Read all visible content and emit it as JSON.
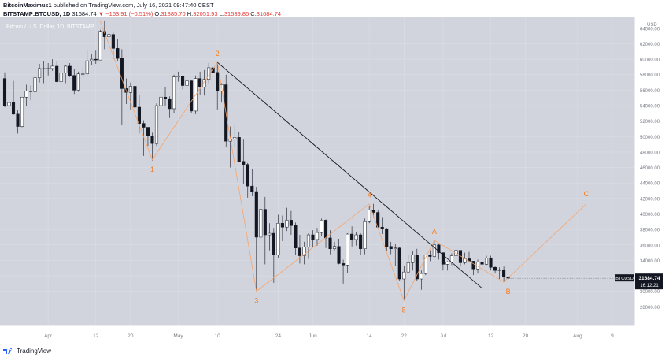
{
  "header": {
    "author": "BitcoinMaximus1",
    "published": "published on TradingView.com, July 16, 2021 09:47:40 CEST",
    "symbol": "BITSTAMP:BTCUSD, 1D",
    "last": "31684.74",
    "change": "▼ −163.91 (−0.51%)",
    "o_label": "O:",
    "o_value": "31885.70",
    "h_label": "H:",
    "h_value": "32051.93",
    "l_label": "L:",
    "l_value": "31539.86",
    "c_label": "C:",
    "c_value": "31684.74"
  },
  "footer": {
    "brand": "TradingView"
  },
  "colors": {
    "background": "#d1d4dc",
    "up_candle": "#ffffff",
    "down_candle": "#131722",
    "wave_line": "#f7a46b",
    "wave_label": "#f57c1f",
    "trendline": "#131722",
    "price_tag": "#131722"
  },
  "chart_data": {
    "type": "candlestick",
    "title": "Bitcoin / U.S. Dollar, 1D, BITSTAMP",
    "ylabel": "USD",
    "y_scale": "linear",
    "ylim": [
      26000,
      65000
    ],
    "y_ticks": [
      28000,
      30000,
      32000,
      34000,
      36000,
      38000,
      40000,
      42000,
      44000,
      46000,
      48000,
      50000,
      52000,
      54000,
      56000,
      58000,
      60000,
      62000,
      64000
    ],
    "x_range": [
      "2021-03-22",
      "2021-08-13"
    ],
    "x_ticks": [
      {
        "date": "2021-04-01",
        "label": "Apr"
      },
      {
        "date": "2021-04-12",
        "label": "12"
      },
      {
        "date": "2021-04-20",
        "label": "20"
      },
      {
        "date": "2021-05-01",
        "label": "May"
      },
      {
        "date": "2021-05-10",
        "label": "10"
      },
      {
        "date": "2021-05-24",
        "label": "24"
      },
      {
        "date": "2021-06-01",
        "label": "Jun"
      },
      {
        "date": "2021-06-14",
        "label": "14"
      },
      {
        "date": "2021-06-22",
        "label": "22"
      },
      {
        "date": "2021-07-01",
        "label": "Jul"
      },
      {
        "date": "2021-07-12",
        "label": "12"
      },
      {
        "date": "2021-07-20",
        "label": "20"
      },
      {
        "date": "2021-08-01",
        "label": "Aug"
      },
      {
        "date": "2021-08-09",
        "label": "9"
      }
    ],
    "grid": true,
    "current_price": {
      "value": 31684.74,
      "label": "31684.74",
      "symbol": "BTCUSD",
      "countdown": "16:12:21"
    },
    "candles": [
      {
        "date": "2021-03-22",
        "o": 57500,
        "h": 58300,
        "l": 53800,
        "c": 54000
      },
      {
        "date": "2021-03-23",
        "o": 54000,
        "h": 55800,
        "l": 53000,
        "c": 54400
      },
      {
        "date": "2021-03-24",
        "o": 54400,
        "h": 57200,
        "l": 52800,
        "c": 52900
      },
      {
        "date": "2021-03-25",
        "o": 52900,
        "h": 53400,
        "l": 50400,
        "c": 51300
      },
      {
        "date": "2021-03-26",
        "o": 51300,
        "h": 55100,
        "l": 51200,
        "c": 55100
      },
      {
        "date": "2021-03-27",
        "o": 55100,
        "h": 56700,
        "l": 53900,
        "c": 55900
      },
      {
        "date": "2021-03-28",
        "o": 55900,
        "h": 56600,
        "l": 54700,
        "c": 55800
      },
      {
        "date": "2021-03-29",
        "o": 55800,
        "h": 58400,
        "l": 54800,
        "c": 57600
      },
      {
        "date": "2021-03-30",
        "o": 57600,
        "h": 59400,
        "l": 57000,
        "c": 58800
      },
      {
        "date": "2021-03-31",
        "o": 58800,
        "h": 59800,
        "l": 56900,
        "c": 58800
      },
      {
        "date": "2021-04-01",
        "o": 58800,
        "h": 59500,
        "l": 57900,
        "c": 58800
      },
      {
        "date": "2021-04-02",
        "o": 58800,
        "h": 60000,
        "l": 58500,
        "c": 59100
      },
      {
        "date": "2021-04-03",
        "o": 59100,
        "h": 59800,
        "l": 57000,
        "c": 57100
      },
      {
        "date": "2021-04-04",
        "o": 57100,
        "h": 58500,
        "l": 56500,
        "c": 58200
      },
      {
        "date": "2021-04-05",
        "o": 58200,
        "h": 59300,
        "l": 56900,
        "c": 59100
      },
      {
        "date": "2021-04-06",
        "o": 59100,
        "h": 59500,
        "l": 57700,
        "c": 57900
      },
      {
        "date": "2021-04-07",
        "o": 57900,
        "h": 58700,
        "l": 55500,
        "c": 56000
      },
      {
        "date": "2021-04-08",
        "o": 56000,
        "h": 58400,
        "l": 55800,
        "c": 58100
      },
      {
        "date": "2021-04-09",
        "o": 58100,
        "h": 58900,
        "l": 57700,
        "c": 58100
      },
      {
        "date": "2021-04-10",
        "o": 58100,
        "h": 61200,
        "l": 57900,
        "c": 59800
      },
      {
        "date": "2021-04-11",
        "o": 59800,
        "h": 60700,
        "l": 59200,
        "c": 60000
      },
      {
        "date": "2021-04-12",
        "o": 60000,
        "h": 61100,
        "l": 59400,
        "c": 59900
      },
      {
        "date": "2021-04-13",
        "o": 59900,
        "h": 63800,
        "l": 59900,
        "c": 63600
      },
      {
        "date": "2021-04-14",
        "o": 63600,
        "h": 64900,
        "l": 61300,
        "c": 62900
      },
      {
        "date": "2021-04-15",
        "o": 62900,
        "h": 63800,
        "l": 62100,
        "c": 63200
      },
      {
        "date": "2021-04-16",
        "o": 63200,
        "h": 63600,
        "l": 60000,
        "c": 61400
      },
      {
        "date": "2021-04-17",
        "o": 61400,
        "h": 62600,
        "l": 59700,
        "c": 60100
      },
      {
        "date": "2021-04-18",
        "o": 60100,
        "h": 61300,
        "l": 51500,
        "c": 56200
      },
      {
        "date": "2021-04-19",
        "o": 56200,
        "h": 57500,
        "l": 54200,
        "c": 55700
      },
      {
        "date": "2021-04-20",
        "o": 55700,
        "h": 57000,
        "l": 53400,
        "c": 56500
      },
      {
        "date": "2021-04-21",
        "o": 56500,
        "h": 56800,
        "l": 53600,
        "c": 53800
      },
      {
        "date": "2021-04-22",
        "o": 53800,
        "h": 55400,
        "l": 50400,
        "c": 51700
      },
      {
        "date": "2021-04-23",
        "o": 51700,
        "h": 52100,
        "l": 47500,
        "c": 51200
      },
      {
        "date": "2021-04-24",
        "o": 51200,
        "h": 51200,
        "l": 48800,
        "c": 50100
      },
      {
        "date": "2021-04-25",
        "o": 50100,
        "h": 50500,
        "l": 46900,
        "c": 49100
      },
      {
        "date": "2021-04-26",
        "o": 49100,
        "h": 54300,
        "l": 48800,
        "c": 54000
      },
      {
        "date": "2021-04-27",
        "o": 54000,
        "h": 55400,
        "l": 53300,
        "c": 55100
      },
      {
        "date": "2021-04-28",
        "o": 55100,
        "h": 56400,
        "l": 53900,
        "c": 54900
      },
      {
        "date": "2021-04-29",
        "o": 54900,
        "h": 55200,
        "l": 52400,
        "c": 53600
      },
      {
        "date": "2021-04-30",
        "o": 53600,
        "h": 58000,
        "l": 53000,
        "c": 57700
      },
      {
        "date": "2021-05-01",
        "o": 57700,
        "h": 58400,
        "l": 57100,
        "c": 57800
      },
      {
        "date": "2021-05-02",
        "o": 57800,
        "h": 57900,
        "l": 56100,
        "c": 56600
      },
      {
        "date": "2021-05-03",
        "o": 56600,
        "h": 58900,
        "l": 56500,
        "c": 57200
      },
      {
        "date": "2021-05-04",
        "o": 57200,
        "h": 57300,
        "l": 53000,
        "c": 53300
      },
      {
        "date": "2021-05-05",
        "o": 53300,
        "h": 57900,
        "l": 52900,
        "c": 57500
      },
      {
        "date": "2021-05-06",
        "o": 57500,
        "h": 58400,
        "l": 55400,
        "c": 56400
      },
      {
        "date": "2021-05-07",
        "o": 56400,
        "h": 58600,
        "l": 55300,
        "c": 57400
      },
      {
        "date": "2021-05-08",
        "o": 57400,
        "h": 59500,
        "l": 56900,
        "c": 58900
      },
      {
        "date": "2021-05-09",
        "o": 58900,
        "h": 59200,
        "l": 56200,
        "c": 58300
      },
      {
        "date": "2021-05-10",
        "o": 58300,
        "h": 59600,
        "l": 53500,
        "c": 55900
      },
      {
        "date": "2021-05-11",
        "o": 55900,
        "h": 56900,
        "l": 54400,
        "c": 56700
      },
      {
        "date": "2021-05-12",
        "o": 56700,
        "h": 58000,
        "l": 48600,
        "c": 49400
      },
      {
        "date": "2021-05-13",
        "o": 49400,
        "h": 51300,
        "l": 46000,
        "c": 49700
      },
      {
        "date": "2021-05-14",
        "o": 49700,
        "h": 51500,
        "l": 48700,
        "c": 49900
      },
      {
        "date": "2021-05-15",
        "o": 49900,
        "h": 50600,
        "l": 46700,
        "c": 46800
      },
      {
        "date": "2021-05-16",
        "o": 46800,
        "h": 49600,
        "l": 43900,
        "c": 46400
      },
      {
        "date": "2021-05-17",
        "o": 46400,
        "h": 46600,
        "l": 42100,
        "c": 43600
      },
      {
        "date": "2021-05-18",
        "o": 43600,
        "h": 45800,
        "l": 42300,
        "c": 42900
      },
      {
        "date": "2021-05-19",
        "o": 42900,
        "h": 43500,
        "l": 30000,
        "c": 37000
      },
      {
        "date": "2021-05-20",
        "o": 37000,
        "h": 42500,
        "l": 35000,
        "c": 40600
      },
      {
        "date": "2021-05-21",
        "o": 40600,
        "h": 42200,
        "l": 33500,
        "c": 37300
      },
      {
        "date": "2021-05-22",
        "o": 37300,
        "h": 38800,
        "l": 35300,
        "c": 37500
      },
      {
        "date": "2021-05-23",
        "o": 37500,
        "h": 38200,
        "l": 31100,
        "c": 34700
      },
      {
        "date": "2021-05-24",
        "o": 34700,
        "h": 39900,
        "l": 34300,
        "c": 38800
      },
      {
        "date": "2021-05-25",
        "o": 38800,
        "h": 39800,
        "l": 36500,
        "c": 38300
      },
      {
        "date": "2021-05-26",
        "o": 38300,
        "h": 40800,
        "l": 37800,
        "c": 39200
      },
      {
        "date": "2021-05-27",
        "o": 39200,
        "h": 40400,
        "l": 37300,
        "c": 38500
      },
      {
        "date": "2021-05-28",
        "o": 38500,
        "h": 38900,
        "l": 34700,
        "c": 35600
      },
      {
        "date": "2021-05-29",
        "o": 35600,
        "h": 37300,
        "l": 33600,
        "c": 34600
      },
      {
        "date": "2021-05-30",
        "o": 34600,
        "h": 36400,
        "l": 33500,
        "c": 35700
      },
      {
        "date": "2021-05-31",
        "o": 35700,
        "h": 37500,
        "l": 34200,
        "c": 37300
      },
      {
        "date": "2021-06-01",
        "o": 37300,
        "h": 37900,
        "l": 35700,
        "c": 36700
      },
      {
        "date": "2021-06-02",
        "o": 36700,
        "h": 38200,
        "l": 35900,
        "c": 37600
      },
      {
        "date": "2021-06-03",
        "o": 37600,
        "h": 39400,
        "l": 37200,
        "c": 39200
      },
      {
        "date": "2021-06-04",
        "o": 39200,
        "h": 39300,
        "l": 35600,
        "c": 36900
      },
      {
        "date": "2021-06-05",
        "o": 36900,
        "h": 37900,
        "l": 34800,
        "c": 35500
      },
      {
        "date": "2021-06-06",
        "o": 35500,
        "h": 36400,
        "l": 35300,
        "c": 35800
      },
      {
        "date": "2021-06-07",
        "o": 35800,
        "h": 36800,
        "l": 33500,
        "c": 33600
      },
      {
        "date": "2021-06-08",
        "o": 33600,
        "h": 34100,
        "l": 31000,
        "c": 33400
      },
      {
        "date": "2021-06-09",
        "o": 33400,
        "h": 37500,
        "l": 32400,
        "c": 37400
      },
      {
        "date": "2021-06-10",
        "o": 37400,
        "h": 38400,
        "l": 35800,
        "c": 36700
      },
      {
        "date": "2021-06-11",
        "o": 36700,
        "h": 37700,
        "l": 35900,
        "c": 37300
      },
      {
        "date": "2021-06-12",
        "o": 37300,
        "h": 37500,
        "l": 34700,
        "c": 35500
      },
      {
        "date": "2021-06-13",
        "o": 35500,
        "h": 39400,
        "l": 34800,
        "c": 39000
      },
      {
        "date": "2021-06-14",
        "o": 39000,
        "h": 41000,
        "l": 38800,
        "c": 40500
      },
      {
        "date": "2021-06-15",
        "o": 40500,
        "h": 41300,
        "l": 39600,
        "c": 40200
      },
      {
        "date": "2021-06-16",
        "o": 40200,
        "h": 40500,
        "l": 38200,
        "c": 38300
      },
      {
        "date": "2021-06-17",
        "o": 38300,
        "h": 39600,
        "l": 37400,
        "c": 38100
      },
      {
        "date": "2021-06-18",
        "o": 38100,
        "h": 38200,
        "l": 35200,
        "c": 35800
      },
      {
        "date": "2021-06-19",
        "o": 35800,
        "h": 36400,
        "l": 34800,
        "c": 35500
      },
      {
        "date": "2021-06-20",
        "o": 35500,
        "h": 36100,
        "l": 33300,
        "c": 35600
      },
      {
        "date": "2021-06-21",
        "o": 35600,
        "h": 35700,
        "l": 31300,
        "c": 31600
      },
      {
        "date": "2021-06-22",
        "o": 31600,
        "h": 33300,
        "l": 28800,
        "c": 32500
      },
      {
        "date": "2021-06-23",
        "o": 32500,
        "h": 34800,
        "l": 32300,
        "c": 33700
      },
      {
        "date": "2021-06-24",
        "o": 33700,
        "h": 35200,
        "l": 32700,
        "c": 34700
      },
      {
        "date": "2021-06-25",
        "o": 34700,
        "h": 35500,
        "l": 31300,
        "c": 31600
      },
      {
        "date": "2021-06-26",
        "o": 31600,
        "h": 32700,
        "l": 30200,
        "c": 32300
      },
      {
        "date": "2021-06-27",
        "o": 32300,
        "h": 34700,
        "l": 32100,
        "c": 34700
      },
      {
        "date": "2021-06-28",
        "o": 34700,
        "h": 35300,
        "l": 33900,
        "c": 34500
      },
      {
        "date": "2021-06-29",
        "o": 34500,
        "h": 36600,
        "l": 34300,
        "c": 36000
      },
      {
        "date": "2021-06-30",
        "o": 36000,
        "h": 36100,
        "l": 34100,
        "c": 35000
      },
      {
        "date": "2021-07-01",
        "o": 35000,
        "h": 35000,
        "l": 32700,
        "c": 33500
      },
      {
        "date": "2021-07-02",
        "o": 33500,
        "h": 33900,
        "l": 32700,
        "c": 33800
      },
      {
        "date": "2021-07-03",
        "o": 33800,
        "h": 34900,
        "l": 33400,
        "c": 34600
      },
      {
        "date": "2021-07-04",
        "o": 34600,
        "h": 35900,
        "l": 34300,
        "c": 35300
      },
      {
        "date": "2021-07-05",
        "o": 35300,
        "h": 35300,
        "l": 33200,
        "c": 33700
      },
      {
        "date": "2021-07-06",
        "o": 33700,
        "h": 35000,
        "l": 33500,
        "c": 34200
      },
      {
        "date": "2021-07-07",
        "o": 34200,
        "h": 35100,
        "l": 33800,
        "c": 33900
      },
      {
        "date": "2021-07-08",
        "o": 33900,
        "h": 33900,
        "l": 32100,
        "c": 32900
      },
      {
        "date": "2021-07-09",
        "o": 32900,
        "h": 34100,
        "l": 32300,
        "c": 33800
      },
      {
        "date": "2021-07-10",
        "o": 33800,
        "h": 34300,
        "l": 33100,
        "c": 33500
      },
      {
        "date": "2021-07-11",
        "o": 33500,
        "h": 34600,
        "l": 33400,
        "c": 34300
      },
      {
        "date": "2021-07-12",
        "o": 34300,
        "h": 34600,
        "l": 32700,
        "c": 33100
      },
      {
        "date": "2021-07-13",
        "o": 33100,
        "h": 33300,
        "l": 32300,
        "c": 32700
      },
      {
        "date": "2021-07-14",
        "o": 32700,
        "h": 33100,
        "l": 31600,
        "c": 32800
      },
      {
        "date": "2021-07-15",
        "o": 32800,
        "h": 33200,
        "l": 31200,
        "c": 31900
      },
      {
        "date": "2021-07-16",
        "o": 31886,
        "h": 32052,
        "l": 31540,
        "c": 31685
      }
    ],
    "wave_labels": [
      {
        "label": "1",
        "date": "2021-04-25",
        "value": 47000,
        "pos": "below"
      },
      {
        "label": "2",
        "date": "2021-05-10",
        "value": 59600,
        "pos": "above"
      },
      {
        "label": "3",
        "date": "2021-05-19",
        "value": 30000,
        "pos": "below"
      },
      {
        "label": "4",
        "date": "2021-06-14",
        "value": 41300,
        "pos": "above"
      },
      {
        "label": "5",
        "date": "2021-06-22",
        "value": 28800,
        "pos": "below"
      },
      {
        "label": "A",
        "date": "2021-06-29",
        "value": 36600,
        "pos": "above"
      },
      {
        "label": "B",
        "date": "2021-07-16",
        "value": 31200,
        "pos": "below"
      },
      {
        "label": "C",
        "date": "2021-08-03",
        "value": 41500,
        "pos": "above"
      }
    ],
    "wave_path": [
      {
        "date": "2021-04-13",
        "value": 64900
      },
      {
        "date": "2021-04-25",
        "value": 47000
      },
      {
        "date": "2021-05-10",
        "value": 59600
      },
      {
        "date": "2021-05-19",
        "value": 30000
      },
      {
        "date": "2021-06-14",
        "value": 41300
      },
      {
        "date": "2021-06-22",
        "value": 28800
      },
      {
        "date": "2021-06-29",
        "value": 36600
      },
      {
        "date": "2021-07-15",
        "value": 31200
      },
      {
        "date": "2021-08-03",
        "value": 41300
      }
    ],
    "trendline": [
      {
        "date": "2021-05-10",
        "value": 59600
      },
      {
        "date": "2021-07-10",
        "value": 30400
      }
    ]
  }
}
